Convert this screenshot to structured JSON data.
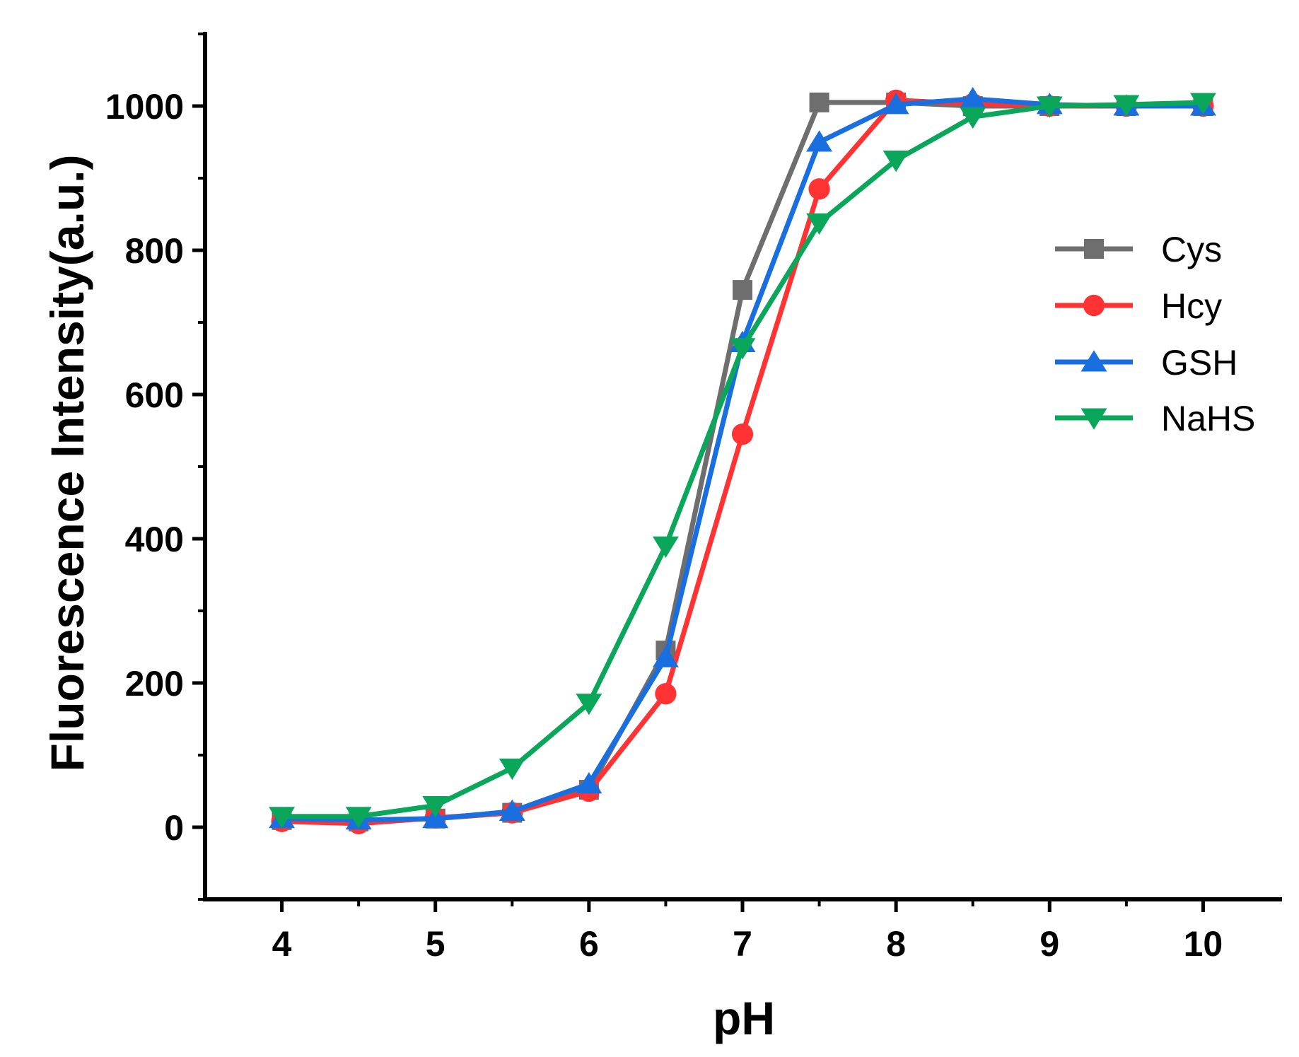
{
  "chart_data": {
    "type": "line",
    "title": "",
    "xlabel": "pH",
    "ylabel": "Fluorescence Intensity(a.u.)",
    "xlim": [
      3.5,
      10.5
    ],
    "ylim": [
      -100,
      1100
    ],
    "xticks": [
      4,
      5,
      6,
      7,
      8,
      9,
      10
    ],
    "xtick_labels": [
      "4",
      "5",
      "6",
      "7",
      "8",
      "9",
      "10"
    ],
    "xminor": [
      4.5,
      5.5,
      6.5,
      7.5,
      8.5,
      9.5
    ],
    "yticks": [
      0,
      200,
      400,
      600,
      800,
      1000
    ],
    "ytick_labels": [
      "0",
      "200",
      "400",
      "600",
      "800",
      "1000"
    ],
    "yminor": [
      -100,
      100,
      300,
      500,
      700,
      900,
      1100
    ],
    "grid": false,
    "legend_position": "right",
    "x": [
      4,
      4.5,
      5,
      5.5,
      6,
      6.5,
      7,
      7.5,
      8,
      8.5,
      9,
      9.5,
      10
    ],
    "series": [
      {
        "name": "Cys",
        "color": "#6e6e6e",
        "marker": "square",
        "values": [
          10,
          8,
          12,
          20,
          52,
          245,
          745,
          1005,
          1005,
          1000,
          1000,
          1000,
          1000
        ]
      },
      {
        "name": "Hcy",
        "color": "#ff3333",
        "marker": "circle",
        "values": [
          8,
          5,
          13,
          20,
          50,
          185,
          545,
          885,
          1008,
          1003,
          1000,
          1000,
          1000
        ]
      },
      {
        "name": "GSH",
        "color": "#1a6fe0",
        "marker": "triangle-up",
        "values": [
          12,
          10,
          12,
          22,
          60,
          235,
          672,
          950,
          1002,
          1010,
          1002,
          1000,
          1000
        ]
      },
      {
        "name": "NaHS",
        "color": "#0aa65a",
        "marker": "triangle-down",
        "values": [
          15,
          15,
          30,
          82,
          172,
          390,
          665,
          838,
          925,
          985,
          1000,
          1002,
          1005
        ]
      }
    ]
  }
}
